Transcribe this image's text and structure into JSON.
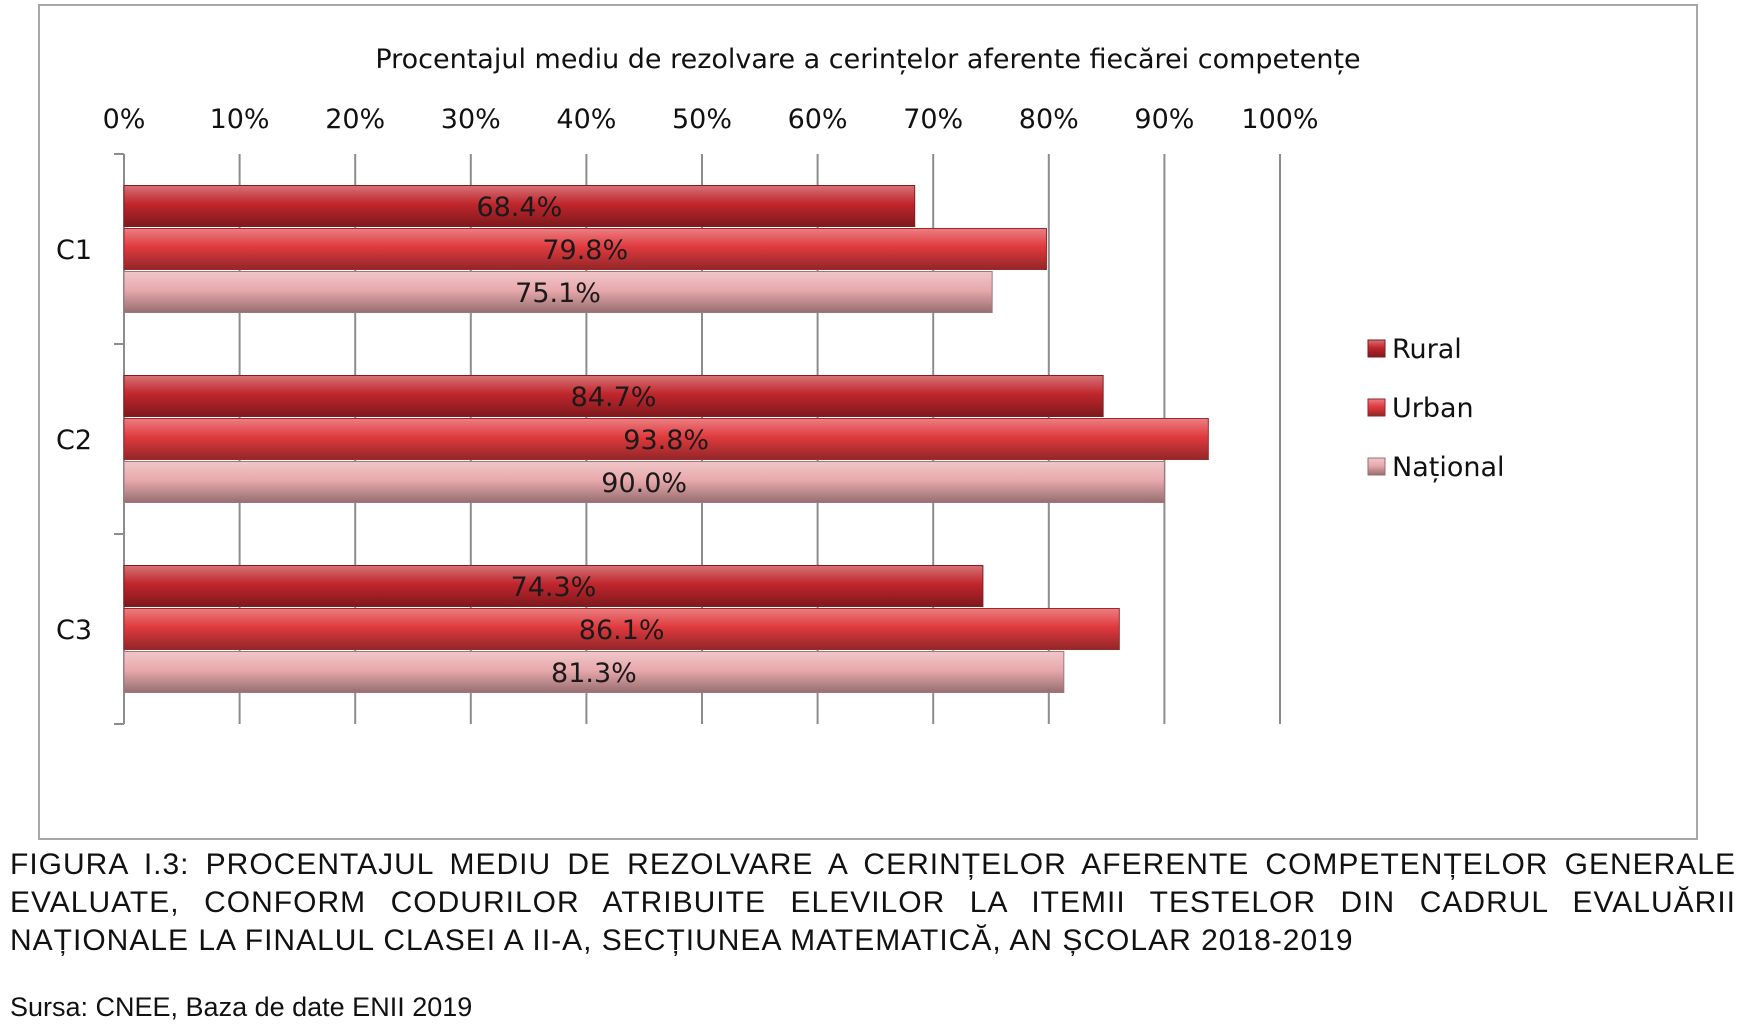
{
  "chart_data": {
    "type": "bar",
    "orientation": "horizontal",
    "title": "Procentajul mediu de rezolvare a cerințelor aferente fiecărei competențe",
    "categories": [
      "C1",
      "C2",
      "C3"
    ],
    "series": [
      {
        "name": "Rural",
        "color": "#c0262c",
        "values": [
          68.4,
          84.7,
          74.3
        ],
        "labels": [
          "68.4%",
          "84.7%",
          "74.3%"
        ]
      },
      {
        "name": "Urban",
        "color": "#e03a3e",
        "values": [
          79.8,
          93.8,
          86.1
        ],
        "labels": [
          "79.8%",
          "93.8%",
          "86.1%"
        ]
      },
      {
        "name": "Național",
        "color": "#e8a9ac",
        "values": [
          75.1,
          90.0,
          81.3
        ],
        "labels": [
          "75.1%",
          "90.0%",
          "81.3%"
        ]
      }
    ],
    "xlim": [
      0,
      100
    ],
    "ticks": [
      "0%",
      "10%",
      "20%",
      "30%",
      "40%",
      "50%",
      "60%",
      "70%",
      "80%",
      "90%",
      "100%"
    ],
    "x_axis_position": "top",
    "grid": true,
    "legend": "right"
  },
  "caption": "FIGURA I.3: PROCENTAJUL MEDIU DE REZOLVARE A CERINȚELOR AFERENTE COMPETENȚELOR GENERALE EVALUATE, CONFORM CODURILOR ATRIBUITE ELEVILOR LA ITEMII TESTELOR DIN CADRUL EVALUĂRII NAȚIONALE LA FINALUL CLASEI A II-A, SECȚIUNEA MATEMATICĂ, AN ȘCOLAR 2018-2019",
  "source": "Sursa: CNEE, Baza de date ENII 2019"
}
